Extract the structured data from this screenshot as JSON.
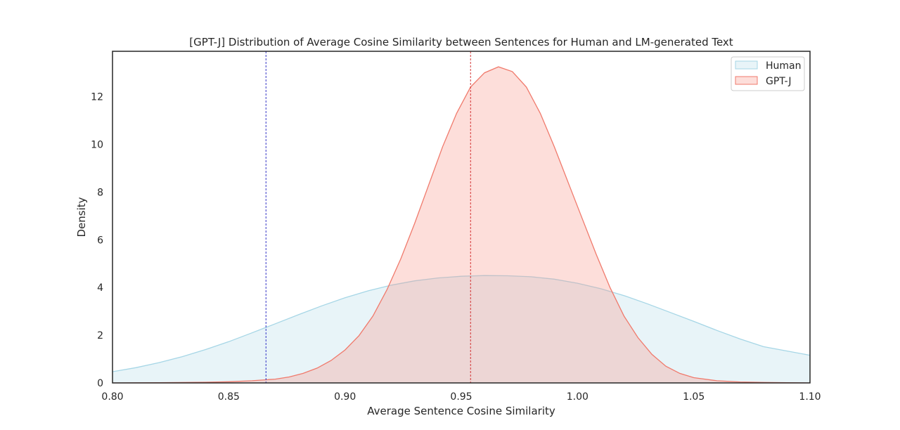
{
  "chart_data": {
    "type": "area",
    "title": "[GPT-J] Distribution of Average Cosine Similarity between Sentences for Human and LM-generated Text",
    "xlabel": "Average Sentence Cosine Similarity",
    "ylabel": "Density",
    "xlim": [
      0.8,
      1.1
    ],
    "ylim": [
      0,
      13.9
    ],
    "xticks": [
      0.8,
      0.85,
      0.9,
      0.95,
      1.0,
      1.05,
      1.1
    ],
    "xtick_labels": [
      "0.80",
      "0.85",
      "0.90",
      "0.95",
      "1.00",
      "1.05",
      "1.10"
    ],
    "yticks": [
      0,
      2,
      4,
      6,
      8,
      10,
      12
    ],
    "ytick_labels": [
      "0",
      "2",
      "4",
      "6",
      "8",
      "10",
      "12"
    ],
    "grid": false,
    "legend_position": "top-right",
    "series": [
      {
        "name": "Human",
        "line_color": "#a6d6e6",
        "fill_color": "#add8e6",
        "fill_opacity": 0.28,
        "x": [
          0.8,
          0.81,
          0.82,
          0.83,
          0.84,
          0.85,
          0.86,
          0.87,
          0.88,
          0.89,
          0.9,
          0.91,
          0.92,
          0.93,
          0.94,
          0.95,
          0.96,
          0.97,
          0.98,
          0.99,
          1.0,
          1.01,
          1.02,
          1.03,
          1.04,
          1.05,
          1.06,
          1.07,
          1.08,
          1.09,
          1.1
        ],
        "y": [
          0.47,
          0.64,
          0.85,
          1.1,
          1.4,
          1.73,
          2.1,
          2.48,
          2.86,
          3.23,
          3.57,
          3.86,
          4.1,
          4.28,
          4.4,
          4.47,
          4.5,
          4.49,
          4.45,
          4.35,
          4.18,
          3.95,
          3.66,
          3.32,
          2.95,
          2.58,
          2.2,
          1.84,
          1.52,
          1.34,
          1.16
        ]
      },
      {
        "name": "GPT-J",
        "line_color": "#f07a6c",
        "fill_color": "#f99a90",
        "fill_opacity": 0.33,
        "x": [
          0.8,
          0.82,
          0.84,
          0.85,
          0.86,
          0.87,
          0.876,
          0.882,
          0.888,
          0.894,
          0.9,
          0.906,
          0.912,
          0.918,
          0.924,
          0.93,
          0.936,
          0.942,
          0.948,
          0.954,
          0.96,
          0.966,
          0.972,
          0.978,
          0.984,
          0.99,
          0.996,
          1.002,
          1.008,
          1.014,
          1.02,
          1.026,
          1.032,
          1.038,
          1.044,
          1.05,
          1.06,
          1.07,
          1.08,
          1.09,
          1.1
        ],
        "y": [
          0.0,
          0.01,
          0.03,
          0.05,
          0.09,
          0.16,
          0.25,
          0.4,
          0.62,
          0.94,
          1.38,
          1.98,
          2.8,
          3.9,
          5.2,
          6.7,
          8.3,
          9.9,
          11.3,
          12.4,
          13.0,
          13.25,
          13.05,
          12.4,
          11.3,
          9.9,
          8.4,
          6.9,
          5.4,
          4.0,
          2.8,
          1.9,
          1.2,
          0.7,
          0.4,
          0.22,
          0.09,
          0.04,
          0.02,
          0.01,
          0.0
        ]
      }
    ],
    "vlines": [
      {
        "x": 0.866,
        "color": "#1f1fbf"
      },
      {
        "x": 0.954,
        "color": "#d01f1f"
      }
    ]
  }
}
